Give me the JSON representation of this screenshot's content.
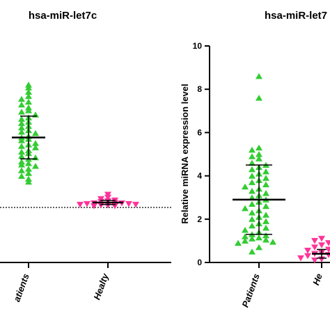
{
  "chart_data": [
    {
      "type": "scatter",
      "title": "hsa-miR-let7c",
      "xlabel": "",
      "ylabel": "",
      "categories": [
        "atients",
        "Healty"
      ],
      "reference_line": "dotted",
      "colors": {
        "Patients": "#33cc33",
        "Healty": "#ff3399"
      },
      "series": [
        {
          "values": [
            8.6,
            8.4,
            8.1,
            7.8,
            7.6,
            7.4,
            7.2,
            7.0,
            6.8,
            6.7,
            6.5,
            6.3,
            6.2,
            6.0,
            5.9,
            5.7,
            5.6,
            5.4,
            5.3,
            5.2,
            5.0,
            4.9,
            4.8,
            4.7,
            4.5,
            4.4,
            4.3,
            4.2,
            4.0,
            3.9,
            3.8,
            3.6,
            3.5,
            3.4,
            3.2,
            3.1,
            3.0,
            2.9,
            2.7,
            2.6,
            2.4,
            2.2,
            2.0,
            1.8
          ],
          "mean": 4.9,
          "sd_upper": 6.4,
          "sd_lower": 3.4
        },
        {
          "values": [
            0.9,
            0.7,
            0.6,
            0.5,
            0.45,
            0.4,
            0.35,
            0.3,
            0.3,
            0.25,
            0.25,
            0.2,
            0.2,
            0.15,
            0.15,
            0.1,
            0.1
          ],
          "mean": 0.35,
          "sd_upper": 0.5,
          "sd_lower": 0.2
        }
      ]
    },
    {
      "type": "scatter",
      "title": "hsa-miR-let7",
      "xlabel": "",
      "ylabel": "Relative miRNA expression level",
      "categories": [
        "Patients",
        "He"
      ],
      "ylim": [
        0,
        10
      ],
      "yticks": [
        "0",
        "2",
        "4",
        "6",
        "8",
        "10"
      ],
      "colors": {
        "Patients": "#33cc33",
        "He": "#ff3399"
      },
      "series": [
        {
          "values": [
            8.6,
            7.6,
            5.3,
            5.2,
            5.0,
            4.9,
            4.8,
            4.6,
            4.5,
            4.4,
            4.3,
            4.2,
            4.1,
            4.0,
            3.9,
            3.8,
            3.7,
            3.6,
            3.5,
            3.4,
            3.3,
            3.2,
            3.1,
            3.0,
            2.9,
            2.8,
            2.7,
            2.6,
            2.5,
            2.4,
            2.3,
            2.2,
            2.1,
            2.0,
            1.9,
            1.8,
            1.7,
            1.6,
            1.5,
            1.4,
            1.3,
            1.25,
            1.2,
            1.15,
            1.1,
            1.05,
            1.0,
            0.95,
            0.9,
            0.7,
            0.5
          ],
          "mean": 2.9,
          "sd_upper": 4.5,
          "sd_lower": 1.3
        },
        {
          "values": [
            1.1,
            1.0,
            0.9,
            0.8,
            0.7,
            0.6,
            0.55,
            0.5,
            0.45,
            0.4,
            0.35,
            0.3,
            0.25,
            0.2,
            0.15,
            0.1
          ],
          "mean": 0.4,
          "sd_upper": 0.6,
          "sd_lower": 0.2
        }
      ]
    }
  ]
}
